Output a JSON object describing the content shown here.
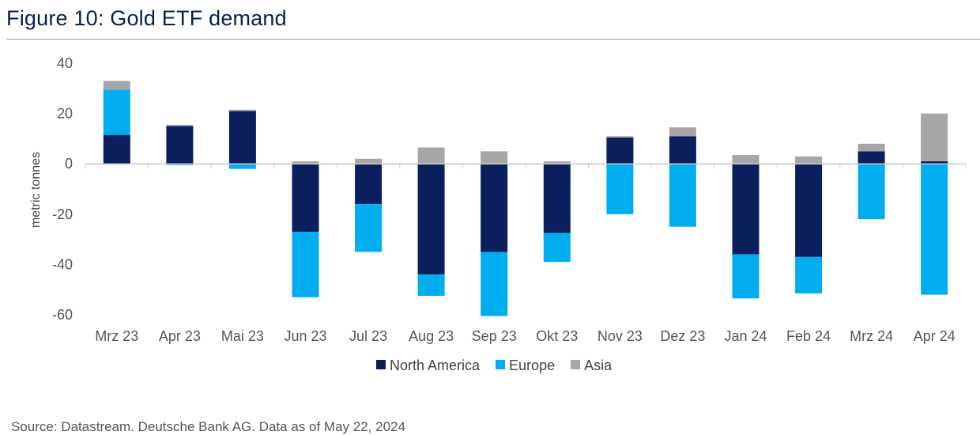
{
  "figure_title": "Figure 10: Gold ETF demand",
  "source_note": "Source: Datastream. Deutsche Bank AG. Data as of May 22, 2024",
  "colors": {
    "north_america": "#0a1f5c",
    "europe": "#00aeef",
    "asia": "#a6a6a6",
    "axis": "#c8c8c8"
  },
  "chart_data": {
    "type": "bar",
    "stacked": true,
    "title": "Figure 10: Gold ETF demand",
    "xlabel": "",
    "ylabel": "metric tonnes",
    "ylim": [
      -60,
      40
    ],
    "yticks": [
      40,
      20,
      0,
      -20,
      -40,
      -60
    ],
    "grid": false,
    "legend_position": "bottom",
    "categories": [
      "Mrz 23",
      "Apr 23",
      "Mai 23",
      "Jun 23",
      "Jul 23",
      "Aug 23",
      "Sep 23",
      "Okt 23",
      "Nov 23",
      "Dez 23",
      "Jan 24",
      "Feb 24",
      "Mrz 24",
      "Apr 24"
    ],
    "series": [
      {
        "name": "North America",
        "key": "north_america",
        "values": [
          11.5,
          15,
          21,
          -27,
          -16,
          -44,
          -35,
          -27.5,
          10.5,
          11,
          -36,
          -37,
          5,
          1
        ]
      },
      {
        "name": "Europe",
        "key": "europe",
        "values": [
          18,
          -0.5,
          -2,
          -26,
          -19,
          -8.5,
          -25.5,
          -11.5,
          -20,
          -25,
          -17.5,
          -14.5,
          -22,
          -52
        ]
      },
      {
        "name": "Asia",
        "key": "asia",
        "values": [
          3.5,
          0.5,
          0.5,
          1,
          2,
          6.5,
          5,
          1,
          0.5,
          3.5,
          3.5,
          3,
          3,
          19
        ]
      }
    ]
  }
}
